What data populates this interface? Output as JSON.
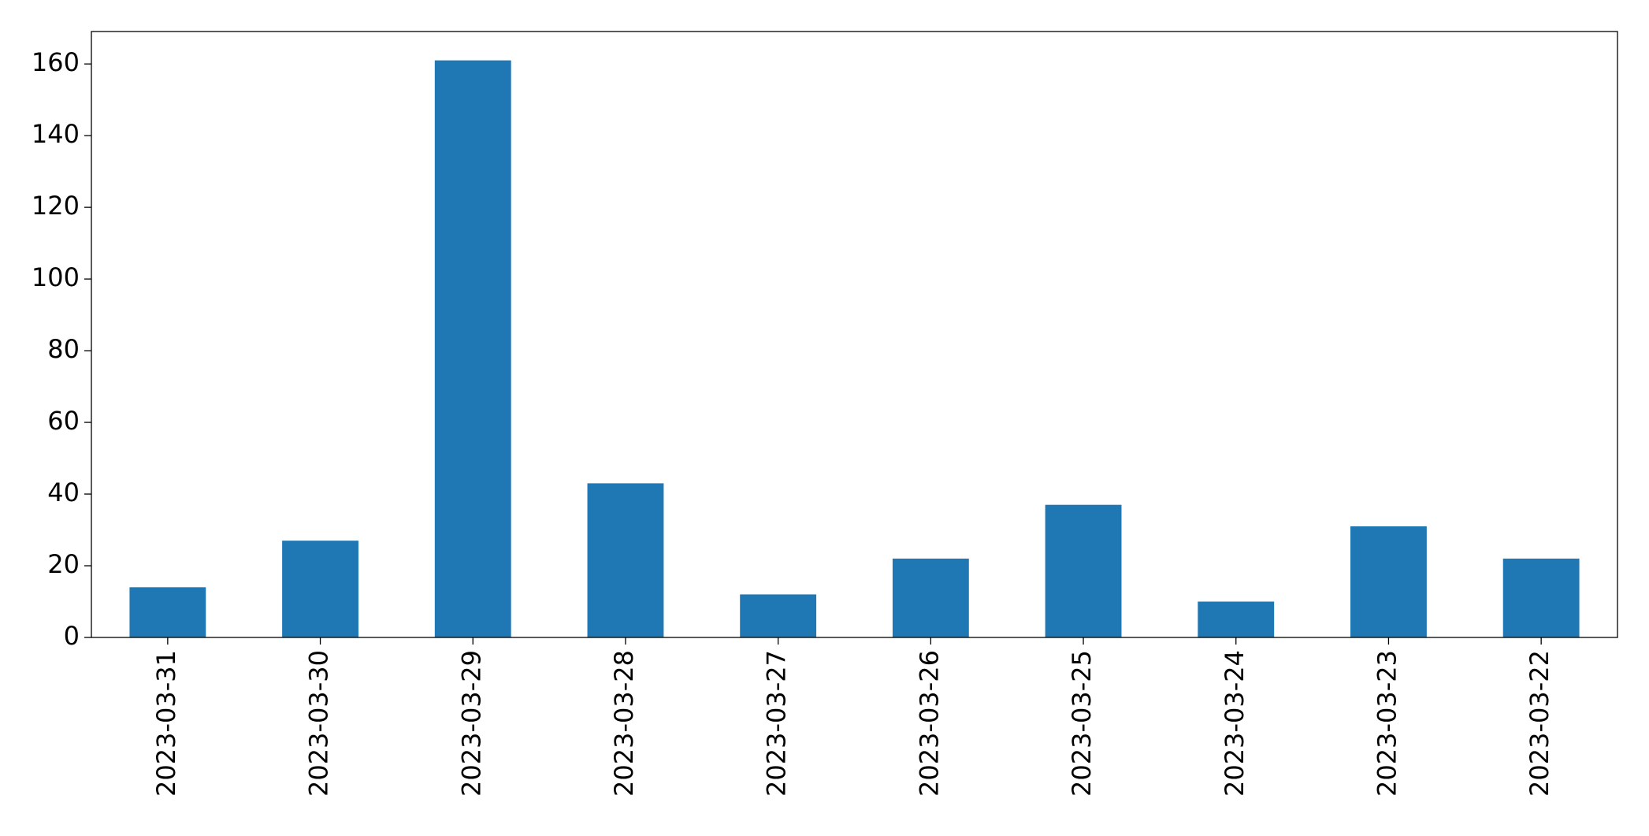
{
  "chart_data": {
    "type": "bar",
    "categories": [
      "2023-03-31",
      "2023-03-30",
      "2023-03-29",
      "2023-03-28",
      "2023-03-27",
      "2023-03-26",
      "2023-03-25",
      "2023-03-24",
      "2023-03-23",
      "2023-03-22"
    ],
    "values": [
      14,
      27,
      161,
      43,
      12,
      22,
      37,
      10,
      31,
      22
    ],
    "color": "#1f77b4",
    "ylim": [
      0,
      169.05
    ],
    "yticks": [
      0,
      20,
      40,
      60,
      80,
      100,
      120,
      140,
      160
    ],
    "grid": false
  }
}
